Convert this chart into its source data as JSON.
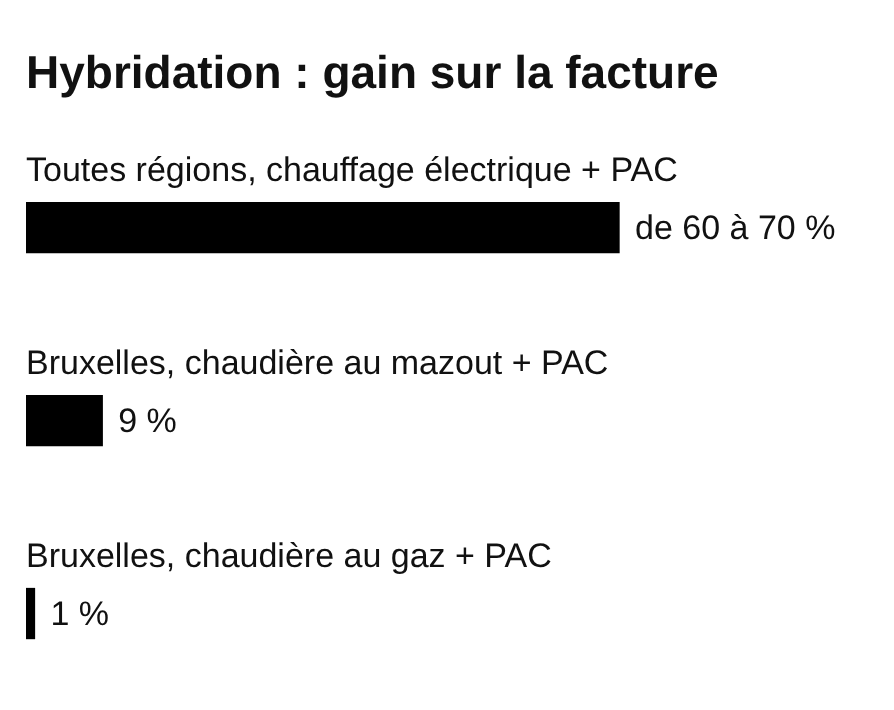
{
  "chart_data": {
    "type": "bar",
    "orientation": "horizontal",
    "title": "Hybridation : gain sur la facture",
    "categories": [
      "Toutes régions, chauffage électrique + PAC",
      "Bruxelles, chaudière au mazout + PAC",
      "Bruxelles, chaudière au gaz + PAC"
    ],
    "values": [
      70,
      9,
      1
    ],
    "value_labels": [
      "de 60 à 70 %",
      "9 %",
      "1 %"
    ],
    "color": "#000000"
  }
}
